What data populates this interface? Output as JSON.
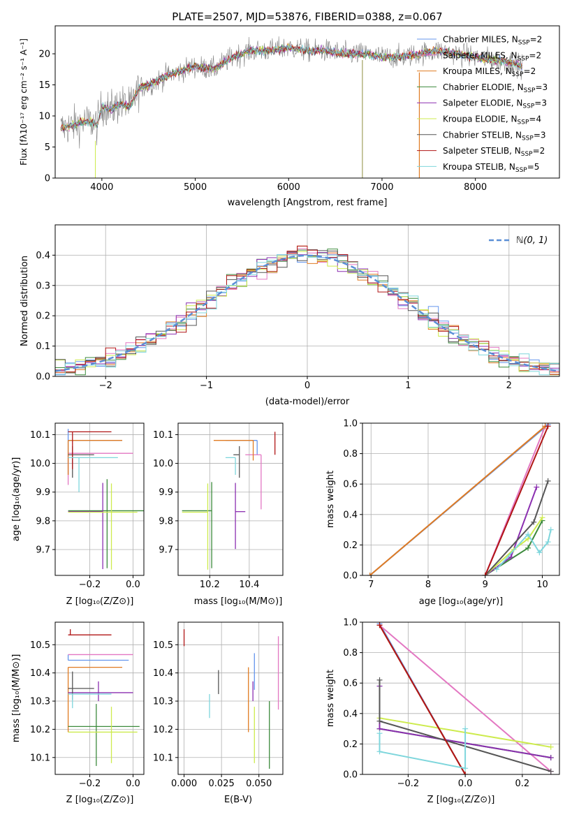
{
  "colors": {
    "Chabrier MILES": "#6495ED",
    "Salpeter MILES": "#E377C2",
    "Kroupa MILES": "#E07B22",
    "Chabrier ELODIE": "#3C8A3C",
    "Salpeter ELODIE": "#8B2FB0",
    "Kroupa ELODIE": "#CDEB4D",
    "Chabrier STELIB": "#555555",
    "Salpeter STELIB": "#B01515",
    "Kroupa STELIB": "#7ED6DC",
    "gaussian": "#5B8FD6",
    "gray": "#7f7f7f"
  },
  "chart_data": [
    {
      "type": "line",
      "title": "PLATE=2507, MJD=53876, FIBERID=0388, z=0.067",
      "xlabel": "wavelength [Angstrom, rest frame]",
      "ylabel": "Flux [fλ10⁻¹⁷ erg cm⁻² s⁻¹ A⁻¹]",
      "xlim": [
        3500,
        8900
      ],
      "ylim": [
        0,
        24.5
      ],
      "xticks": [
        4000,
        5000,
        6000,
        7000,
        8000
      ],
      "yticks": [
        0,
        5,
        10,
        15,
        20
      ],
      "legend": [
        {
          "label": "Chabrier MILES, N",
          "sub": "SSP",
          "tail": "=2"
        },
        {
          "label": "Salpeter MILES, N",
          "sub": "SSP",
          "tail": "=2"
        },
        {
          "label": "Kroupa MILES, N",
          "sub": "SSP",
          "tail": "=2"
        },
        {
          "label": "Chabrier ELODIE, N",
          "sub": "SSP",
          "tail": "=3"
        },
        {
          "label": "Salpeter ELODIE, N",
          "sub": "SSP",
          "tail": "=3"
        },
        {
          "label": "Kroupa ELODIE, N",
          "sub": "SSP",
          "tail": "=4"
        },
        {
          "label": "Chabrier STELIB, N",
          "sub": "SSP",
          "tail": "=3"
        },
        {
          "label": "Salpeter STELIB, N",
          "sub": "SSP",
          "tail": "=2"
        },
        {
          "label": "Kroupa STELIB, N",
          "sub": "SSP",
          "tail": "=5"
        }
      ],
      "legend_position": "upper right",
      "continuum": [
        [
          3560,
          8
        ],
        [
          3700,
          8.5
        ],
        [
          3800,
          9
        ],
        [
          3900,
          9
        ],
        [
          3950,
          8.5
        ],
        [
          4000,
          11.5
        ],
        [
          4100,
          11
        ],
        [
          4200,
          12
        ],
        [
          4300,
          11.5
        ],
        [
          4400,
          14.5
        ],
        [
          4500,
          15
        ],
        [
          4700,
          16.5
        ],
        [
          4800,
          17
        ],
        [
          5000,
          18
        ],
        [
          5200,
          17.5
        ],
        [
          5400,
          19.5
        ],
        [
          5600,
          20.5
        ],
        [
          5800,
          20.5
        ],
        [
          6000,
          21
        ],
        [
          6200,
          20.5
        ],
        [
          6400,
          20.5
        ],
        [
          6600,
          20
        ],
        [
          6800,
          20
        ],
        [
          7000,
          19.5
        ],
        [
          7200,
          19.5
        ],
        [
          7400,
          20
        ],
        [
          7600,
          20.5
        ],
        [
          7800,
          20
        ],
        [
          8000,
          19.5
        ],
        [
          8200,
          19
        ],
        [
          8400,
          18.5
        ],
        [
          8500,
          18
        ]
      ]
    },
    {
      "type": "histogram",
      "xlabel": "(data-model)/error",
      "ylabel": "Normed distribution",
      "xlim": [
        -2.5,
        2.5
      ],
      "ylim": [
        0,
        0.5
      ],
      "xticks": [
        -2,
        -1,
        0,
        1,
        2
      ],
      "yticks": [
        0.0,
        0.1,
        0.2,
        0.3,
        0.4
      ],
      "grid": true,
      "legend": [
        "ℕ(0, 1)"
      ],
      "legend_position": "upper right",
      "gaussian": {
        "mean": 0,
        "sigma": 1
      }
    },
    {
      "type": "scatter",
      "xlabel": "Z [log₁₀(Z/Z⊙)]",
      "ylabel": "age  [log₁₀(age/yr)]",
      "xlim": [
        -0.36,
        0.05
      ],
      "ylim": [
        9.61,
        10.14
      ],
      "xticks": [
        -0.2,
        0.0
      ],
      "yticks": [
        9.7,
        9.8,
        9.9,
        10.0,
        10.1
      ],
      "grid": true,
      "points": [
        {
          "model": "Chabrier MILES",
          "x": -0.3,
          "xerr": [
            0,
            0.25
          ],
          "y": 10.08,
          "yerr": [
            0.12,
            0.04
          ]
        },
        {
          "model": "Salpeter MILES",
          "x": -0.3,
          "xerr": [
            0,
            0.3
          ],
          "y": 10.035,
          "yerr": [
            0.11,
            0.0
          ]
        },
        {
          "model": "Kroupa MILES",
          "x": -0.3,
          "xerr": [
            0,
            0.25
          ],
          "y": 10.08,
          "yerr": [
            0.12,
            0.0
          ]
        },
        {
          "model": "Chabrier ELODIE",
          "x": -0.12,
          "xerr": [
            0.18,
            0.17
          ],
          "y": 9.835,
          "yerr": [
            0.2,
            0.11
          ]
        },
        {
          "model": "Salpeter ELODIE",
          "x": -0.14,
          "xerr": [
            0.16,
            0.0
          ],
          "y": 9.832,
          "yerr": [
            0.2,
            0.1
          ]
        },
        {
          "model": "Kroupa ELODIE",
          "x": -0.1,
          "xerr": [
            0.2,
            0.12
          ],
          "y": 9.83,
          "yerr": [
            0.2,
            0.1
          ]
        },
        {
          "model": "Chabrier STELIB",
          "x": -0.28,
          "xerr": [
            0.02,
            0.1
          ],
          "y": 10.03,
          "yerr": [
            0.08,
            0.03
          ]
        },
        {
          "model": "Salpeter STELIB",
          "x": -0.28,
          "xerr": [
            0.02,
            0.18
          ],
          "y": 10.11,
          "yerr": [
            0.13,
            0.0
          ]
        },
        {
          "model": "Kroupa STELIB",
          "x": -0.25,
          "xerr": [
            0.05,
            0.18
          ],
          "y": 10.02,
          "yerr": [
            0.12,
            0.0
          ]
        }
      ]
    },
    {
      "type": "scatter",
      "xlabel": "mass [log₁₀(M/M⊙)]",
      "ylabel": "",
      "xlim": [
        10.04,
        10.57
      ],
      "ylim": [
        9.61,
        10.14
      ],
      "xticks": [
        10.2,
        10.4
      ],
      "yticks": [
        9.7,
        9.8,
        9.9,
        10.0,
        10.1
      ],
      "grid": true,
      "points": [
        {
          "model": "Chabrier MILES",
          "x": 10.44,
          "xerr": [
            0.16,
            0.0
          ],
          "y": 10.08,
          "yerr": [
            0.05,
            0.0
          ]
        },
        {
          "model": "Salpeter MILES",
          "x": 10.46,
          "xerr": [
            0.08,
            0.0
          ],
          "y": 10.03,
          "yerr": [
            0.19,
            0.0
          ]
        },
        {
          "model": "Kroupa MILES",
          "x": 10.42,
          "xerr": [
            0.2,
            0.0
          ],
          "y": 10.08,
          "yerr": [
            0.07,
            0.0
          ]
        },
        {
          "model": "Chabrier ELODIE",
          "x": 10.21,
          "xerr": [
            0.15,
            0.0
          ],
          "y": 9.835,
          "yerr": [
            0.2,
            0.1
          ]
        },
        {
          "model": "Salpeter ELODIE",
          "x": 10.33,
          "xerr": [
            0.0,
            0.05
          ],
          "y": 9.832,
          "yerr": [
            0.13,
            0.1
          ]
        },
        {
          "model": "Kroupa ELODIE",
          "x": 10.19,
          "xerr": [
            0.13,
            0.0
          ],
          "y": 9.83,
          "yerr": [
            0.2,
            0.1
          ]
        },
        {
          "model": "Chabrier STELIB",
          "x": 10.35,
          "xerr": [
            0.03,
            0.0
          ],
          "y": 10.03,
          "yerr": [
            0.08,
            0.03
          ]
        },
        {
          "model": "Salpeter STELIB",
          "x": 10.53,
          "xerr": [
            0.0,
            0.0
          ],
          "y": 10.11,
          "yerr": [
            0.08,
            0.0
          ]
        },
        {
          "model": "Kroupa STELIB",
          "x": 10.33,
          "xerr": [
            0.05,
            0.0
          ],
          "y": 10.02,
          "yerr": [
            0.06,
            0.0
          ]
        }
      ]
    },
    {
      "type": "line",
      "xlabel": "age  [log₁₀(age/yr)]",
      "ylabel": "mass weight",
      "xlim": [
        6.85,
        10.3
      ],
      "ylim": [
        0,
        1.0
      ],
      "xticks": [
        7,
        8,
        9,
        10
      ],
      "yticks": [
        0.0,
        0.2,
        0.4,
        0.6,
        0.8,
        1.0
      ],
      "grid": true,
      "series": [
        {
          "model": "Chabrier MILES",
          "x": [
            6.98,
            10.1
          ],
          "y": [
            0.0,
            0.99
          ]
        },
        {
          "model": "Salpeter MILES",
          "x": [
            9.0,
            10.05
          ],
          "y": [
            0.0,
            0.98
          ]
        },
        {
          "model": "Kroupa MILES",
          "x": [
            6.98,
            10.05
          ],
          "y": [
            0.0,
            0.98
          ]
        },
        {
          "model": "Chabrier ELODIE",
          "x": [
            9.0,
            9.75,
            10.0
          ],
          "y": [
            0.0,
            0.18,
            0.36
          ]
        },
        {
          "model": "Salpeter ELODIE",
          "x": [
            9.0,
            9.45,
            9.9
          ],
          "y": [
            0.0,
            0.12,
            0.58
          ]
        },
        {
          "model": "Kroupa ELODIE",
          "x": [
            9.0,
            9.5,
            9.75,
            10.0
          ],
          "y": [
            0.0,
            0.17,
            0.24,
            0.38
          ]
        },
        {
          "model": "Chabrier STELIB",
          "x": [
            9.0,
            9.85,
            10.1
          ],
          "y": [
            0.0,
            0.35,
            0.62
          ]
        },
        {
          "model": "Salpeter STELIB",
          "x": [
            9.0,
            10.1
          ],
          "y": [
            0.0,
            0.98
          ]
        },
        {
          "model": "Kroupa STELIB",
          "x": [
            9.2,
            9.75,
            9.95,
            10.1,
            10.15
          ],
          "y": [
            0.04,
            0.27,
            0.15,
            0.22,
            0.3
          ]
        }
      ]
    },
    {
      "type": "scatter",
      "xlabel": "Z [log₁₀(Z/Z⊙)]",
      "ylabel": "mass [log₁₀(M/M⊙)]",
      "xlim": [
        -0.36,
        0.05
      ],
      "ylim": [
        10.04,
        10.58
      ],
      "xticks": [
        -0.2,
        0.0
      ],
      "yticks": [
        10.1,
        10.2,
        10.3,
        10.4,
        10.5
      ],
      "grid": true,
      "points": [
        {
          "model": "Chabrier MILES",
          "x": -0.3,
          "xerr": [
            0,
            0.28
          ],
          "y": 10.445,
          "yerr": [
            0.0,
            0.02
          ]
        },
        {
          "model": "Salpeter MILES",
          "x": -0.3,
          "xerr": [
            0,
            0.3
          ],
          "y": 10.465,
          "yerr": [
            0.0,
            0.0
          ]
        },
        {
          "model": "Kroupa MILES",
          "x": -0.3,
          "xerr": [
            0,
            0.25
          ],
          "y": 10.42,
          "yerr": [
            0.23,
            0.0
          ]
        },
        {
          "model": "Chabrier ELODIE",
          "x": -0.17,
          "xerr": [
            0.13,
            0.2
          ],
          "y": 10.21,
          "yerr": [
            0.14,
            0.08
          ]
        },
        {
          "model": "Salpeter ELODIE",
          "x": -0.16,
          "xerr": [
            0.14,
            0.16
          ],
          "y": 10.33,
          "yerr": [
            0.03,
            0.04
          ]
        },
        {
          "model": "Kroupa ELODIE",
          "x": -0.1,
          "xerr": [
            0.2,
            0.12
          ],
          "y": 10.19,
          "yerr": [
            0.11,
            0.09
          ]
        },
        {
          "model": "Chabrier STELIB",
          "x": -0.28,
          "xerr": [
            0.02,
            0.1
          ],
          "y": 10.345,
          "yerr": [
            0.04,
            0.06
          ]
        },
        {
          "model": "Salpeter STELIB",
          "x": -0.29,
          "xerr": [
            0.01,
            0.19
          ],
          "y": 10.535,
          "yerr": [
            0.0,
            0.02
          ]
        },
        {
          "model": "Kroupa STELIB",
          "x": -0.28,
          "xerr": [
            0.02,
            0.18
          ],
          "y": 10.325,
          "yerr": [
            0.05,
            0.0
          ]
        }
      ]
    },
    {
      "type": "scatter",
      "xlabel": "E(B-V)",
      "ylabel": "",
      "xlim": [
        -0.004,
        0.066
      ],
      "ylim": [
        10.04,
        10.58
      ],
      "xticks": [
        0.0,
        0.025,
        0.05
      ],
      "yticks": [
        10.1,
        10.2,
        10.3,
        10.4,
        10.5
      ],
      "grid": true,
      "points": [
        {
          "model": "Chabrier MILES",
          "x": 0.047,
          "y": 10.41,
          "yerr": [
            0.07,
            0.06
          ]
        },
        {
          "model": "Salpeter MILES",
          "x": 0.063,
          "y": 10.4,
          "yerr": [
            0.13,
            0.13
          ]
        },
        {
          "model": "Kroupa MILES",
          "x": 0.043,
          "y": 10.31,
          "yerr": [
            0.12,
            0.11
          ]
        },
        {
          "model": "Chabrier ELODIE",
          "x": 0.057,
          "y": 10.18,
          "yerr": [
            0.12,
            0.12
          ]
        },
        {
          "model": "Salpeter ELODIE",
          "x": 0.046,
          "y": 10.33,
          "yerr": [
            0.03,
            0.04
          ]
        },
        {
          "model": "Kroupa ELODIE",
          "x": 0.047,
          "y": 10.18,
          "yerr": [
            0.1,
            0.1
          ]
        },
        {
          "model": "Chabrier STELIB",
          "x": 0.023,
          "y": 10.37,
          "yerr": [
            0.045,
            0.04
          ]
        },
        {
          "model": "Salpeter STELIB",
          "x": 0.0,
          "y": 10.525,
          "yerr": [
            0.03,
            0.03
          ]
        },
        {
          "model": "Kroupa STELIB",
          "x": 0.017,
          "y": 10.285,
          "yerr": [
            0.045,
            0.04
          ]
        }
      ]
    },
    {
      "type": "line",
      "xlabel": "Z [log₁₀(Z/Z⊙)]",
      "ylabel": "mass weight",
      "xlim": [
        -0.36,
        0.33
      ],
      "ylim": [
        0,
        1.0
      ],
      "xticks": [
        -0.2,
        0.0,
        0.2
      ],
      "yticks": [
        0.0,
        0.2,
        0.4,
        0.6,
        0.8,
        1.0
      ],
      "grid": true,
      "series": [
        {
          "model": "Chabrier MILES",
          "x": [
            -0.3,
            0.0
          ],
          "y": [
            0.99,
            0.0
          ]
        },
        {
          "model": "Salpeter MILES",
          "x": [
            -0.3,
            0.3
          ],
          "y": [
            0.98,
            0.02
          ]
        },
        {
          "model": "Kroupa MILES",
          "x": [
            -0.3,
            0.0
          ],
          "y": [
            0.98,
            0.0
          ]
        },
        {
          "model": "Chabrier ELODIE",
          "x": [
            -0.3,
            -0.3,
            0.3
          ],
          "y": [
            0.3,
            0.3,
            0.11
          ]
        },
        {
          "model": "Salpeter ELODIE",
          "x": [
            -0.3,
            -0.3,
            0.3
          ],
          "y": [
            0.58,
            0.3,
            0.11
          ]
        },
        {
          "model": "Kroupa ELODIE",
          "x": [
            -0.3,
            0.3
          ],
          "y": [
            0.37,
            0.18
          ]
        },
        {
          "model": "Chabrier STELIB",
          "x": [
            -0.3,
            -0.3,
            0.3
          ],
          "y": [
            0.62,
            0.35,
            0.02
          ]
        },
        {
          "model": "Salpeter STELIB",
          "x": [
            -0.3,
            0.0
          ],
          "y": [
            0.98,
            0.0
          ]
        },
        {
          "model": "Kroupa STELIB",
          "x": [
            -0.3,
            -0.3,
            0.0,
            0.0
          ],
          "y": [
            0.27,
            0.15,
            0.04,
            0.3
          ]
        }
      ]
    }
  ]
}
